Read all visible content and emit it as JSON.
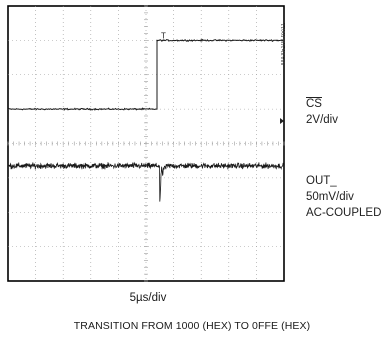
{
  "chart_data": {
    "type": "line",
    "title": "TRANSITION FROM 1000 (HEX) TO 0FFE (HEX)",
    "part_number": "MAX5104 toc11",
    "xlabel": "5µs/div",
    "grid": true,
    "x_divisions": 10,
    "y_divisions": 8,
    "series": [
      {
        "name": "CS",
        "overline": true,
        "scale": "2V/div",
        "kind": "step",
        "low_level_div": 5.0,
        "high_level_div": 7.0,
        "edge_at_div": 5.4,
        "trigger_marker": "T",
        "noise_div": 0.03
      },
      {
        "name": "OUT_",
        "scale_lines": [
          "50mV/div",
          "AC-COUPLED"
        ],
        "kind": "noisy",
        "baseline_div": 3.35,
        "noise_div": 0.12,
        "glitch_at_div": 5.5,
        "glitch_depth_div": -1.1
      }
    ]
  },
  "labels": {
    "cs_name": "CS",
    "cs_scale": "2V/div",
    "out_name": "OUT_",
    "out_scale": "50mV/div",
    "out_coupling": "AC-COUPLED",
    "xdiv": "5µs/div",
    "caption": "TRANSITION FROM 1000 (HEX) TO 0FFE (HEX)",
    "part": "MAX5104 toc11"
  },
  "colors": {
    "trace": "#1a1a1a",
    "grid": "#9a9a9a",
    "frame": "#000000"
  }
}
